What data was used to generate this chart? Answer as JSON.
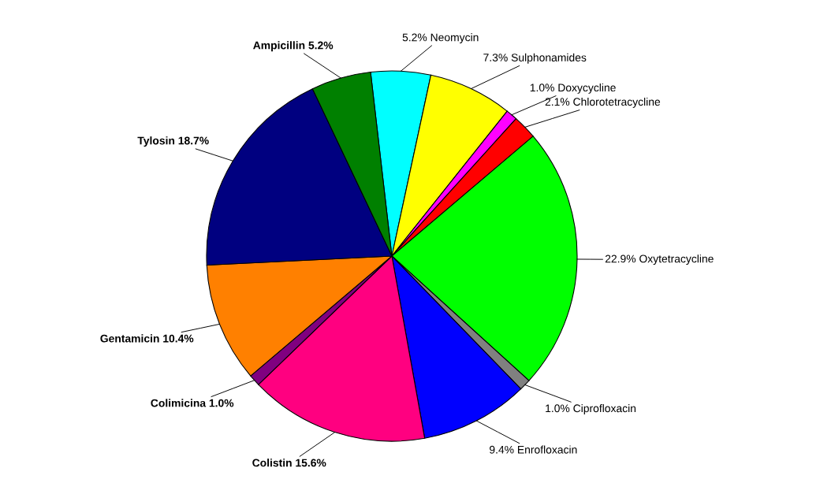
{
  "chart_data": {
    "type": "pie",
    "categories": [
      "Neomycin",
      "Sulphonamides",
      "Doxycycline",
      "Chlorotetracycline",
      "Oxytetracycline",
      "Ciprofloxacin",
      "Enrofloxacin",
      "Colistin",
      "Colimicina",
      "Gentamicin",
      "Tylosin",
      "Ampicillin"
    ],
    "values": [
      5.2,
      7.3,
      1.0,
      2.1,
      22.9,
      1.0,
      9.4,
      15.6,
      1.0,
      10.4,
      18.7,
      5.2
    ],
    "value_labels": [
      "5.2%",
      "7.3%",
      "1.0%",
      "2.1%",
      "22.9%",
      "1.0%",
      "9.4%",
      "15.6%",
      "1.0%",
      "10.4%",
      "18.7%",
      "5.2%"
    ],
    "colors": [
      "#00ffff",
      "#ffff00",
      "#ff00ff",
      "#ff0000",
      "#00ff00",
      "#808080",
      "#0000ff",
      "#ff0080",
      "#800080",
      "#ff8000",
      "#000080",
      "#008000"
    ]
  }
}
